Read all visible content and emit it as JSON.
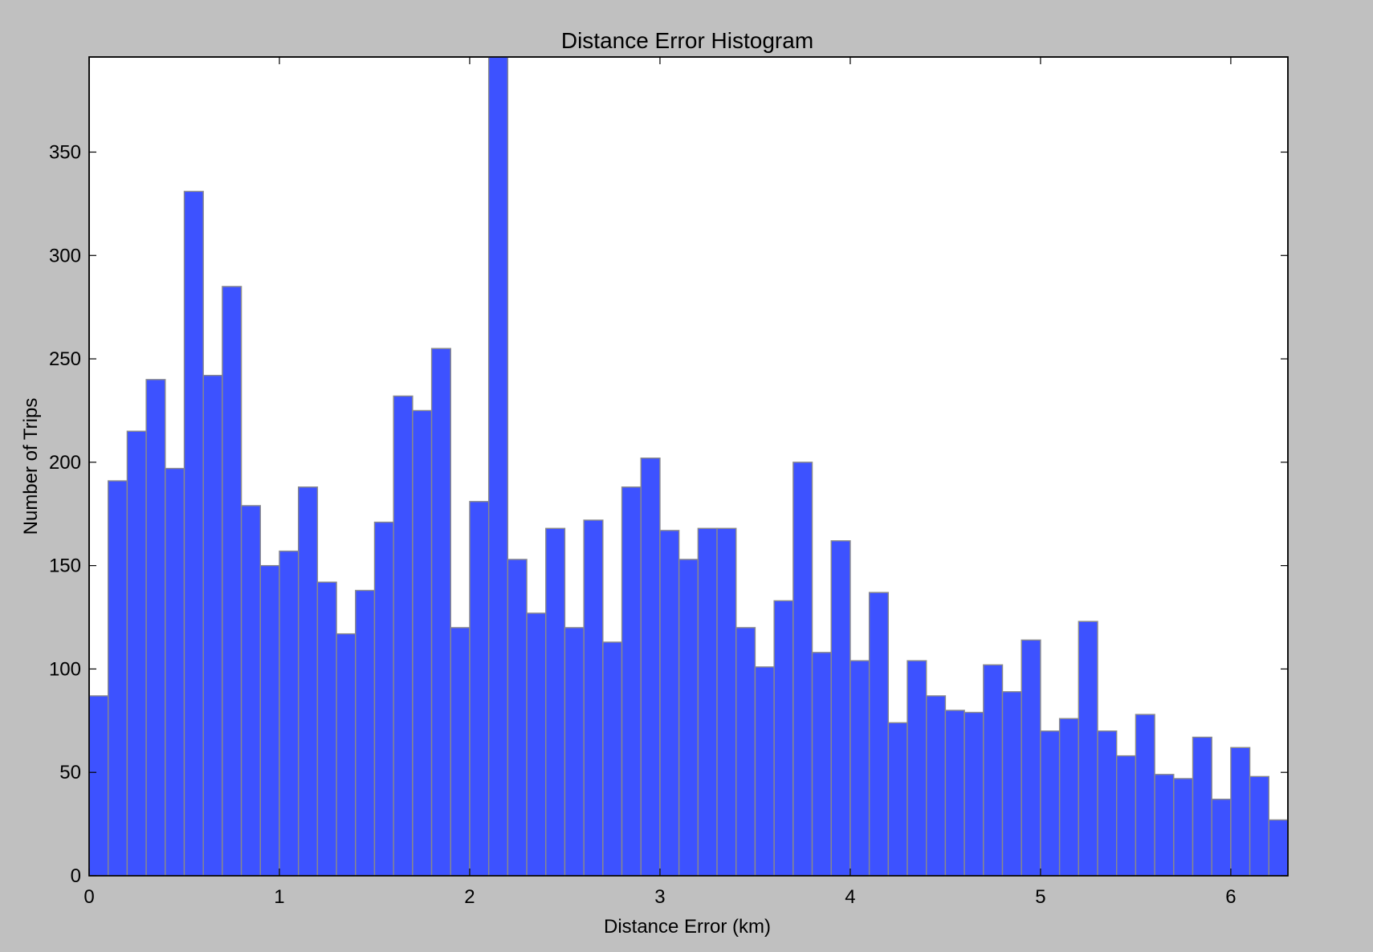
{
  "chart_data": {
    "type": "bar",
    "title": "Distance Error Histogram",
    "xlabel": "Distance Error (km)",
    "ylabel": "Number of Trips",
    "xlim": [
      0,
      6.3
    ],
    "ylim": [
      0,
      396
    ],
    "bin_width": 0.1,
    "x": [
      0.05,
      0.15,
      0.25,
      0.35,
      0.45,
      0.55,
      0.65,
      0.75,
      0.85,
      0.95,
      1.05,
      1.15,
      1.25,
      1.35,
      1.45,
      1.55,
      1.65,
      1.75,
      1.85,
      1.95,
      2.05,
      2.15,
      2.25,
      2.35,
      2.45,
      2.55,
      2.65,
      2.75,
      2.85,
      2.95,
      3.05,
      3.15,
      3.25,
      3.35,
      3.45,
      3.55,
      3.65,
      3.75,
      3.85,
      3.95,
      4.05,
      4.15,
      4.25,
      4.35,
      4.45,
      4.55,
      4.65,
      4.75,
      4.85,
      4.95,
      5.05,
      5.15,
      5.25,
      5.35,
      5.45,
      5.55,
      5.65,
      5.75,
      5.85,
      5.95,
      6.05,
      6.15,
      6.25
    ],
    "values": [
      87,
      191,
      215,
      240,
      197,
      331,
      242,
      285,
      179,
      150,
      157,
      188,
      142,
      117,
      138,
      171,
      232,
      225,
      255,
      120,
      181,
      396,
      153,
      127,
      168,
      120,
      172,
      113,
      188,
      202,
      167,
      153,
      168,
      168,
      120,
      101,
      133,
      200,
      108,
      162,
      104,
      137,
      74,
      104,
      87,
      80,
      79,
      102,
      89,
      114,
      70,
      76,
      123,
      70,
      58,
      78,
      49,
      47,
      67,
      37,
      62,
      48,
      27
    ],
    "x_ticks": [
      0,
      1,
      2,
      3,
      4,
      5,
      6
    ],
    "y_ticks": [
      0,
      50,
      100,
      150,
      200,
      250,
      300,
      350
    ],
    "grid": false,
    "legend": "none",
    "bar_color": "#3d52ff",
    "edge_color": "#8a8a8a",
    "background_color": "#c0c0c0"
  }
}
